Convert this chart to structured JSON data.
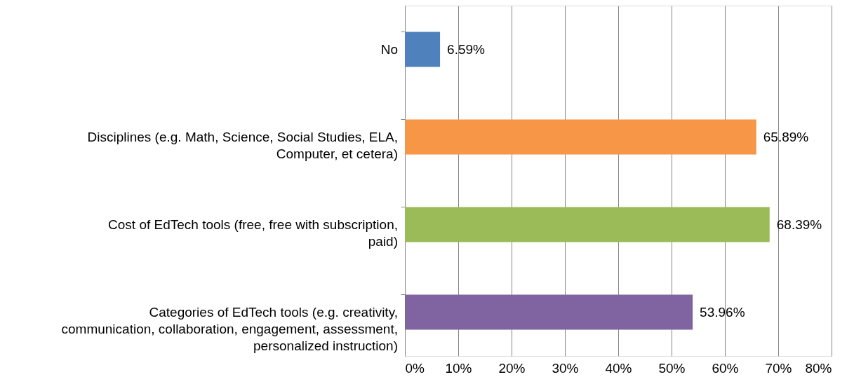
{
  "chart_data": {
    "type": "bar",
    "orientation": "horizontal",
    "categories": [
      "No",
      "Disciplines (e.g. Math, Science, Social Studies, ELA, Computer, et cetera)",
      "Cost of EdTech tools (free, free with subscription, paid)",
      "Categories of EdTech tools (e.g. creativity, communication, collaboration, engagement, assessment, personalized instruction)"
    ],
    "values": [
      6.59,
      65.89,
      68.39,
      53.96
    ],
    "colors": [
      "#4f81bd",
      "#f79646",
      "#9bbb59",
      "#8064a2"
    ],
    "value_labels": [
      "6.59%",
      "65.89%",
      "68.39%",
      "53.96%"
    ],
    "xlim": [
      0,
      80
    ],
    "xticks": [
      {
        "value": 0,
        "label": "0%"
      },
      {
        "value": 10,
        "label": "10%"
      },
      {
        "value": 20,
        "label": "20%"
      },
      {
        "value": 30,
        "label": "30%"
      },
      {
        "value": 40,
        "label": "40%"
      },
      {
        "value": 50,
        "label": "50%"
      },
      {
        "value": 60,
        "label": "60%"
      },
      {
        "value": 70,
        "label": "70%"
      },
      {
        "value": 80,
        "label": "80%"
      }
    ],
    "grid": "x"
  }
}
